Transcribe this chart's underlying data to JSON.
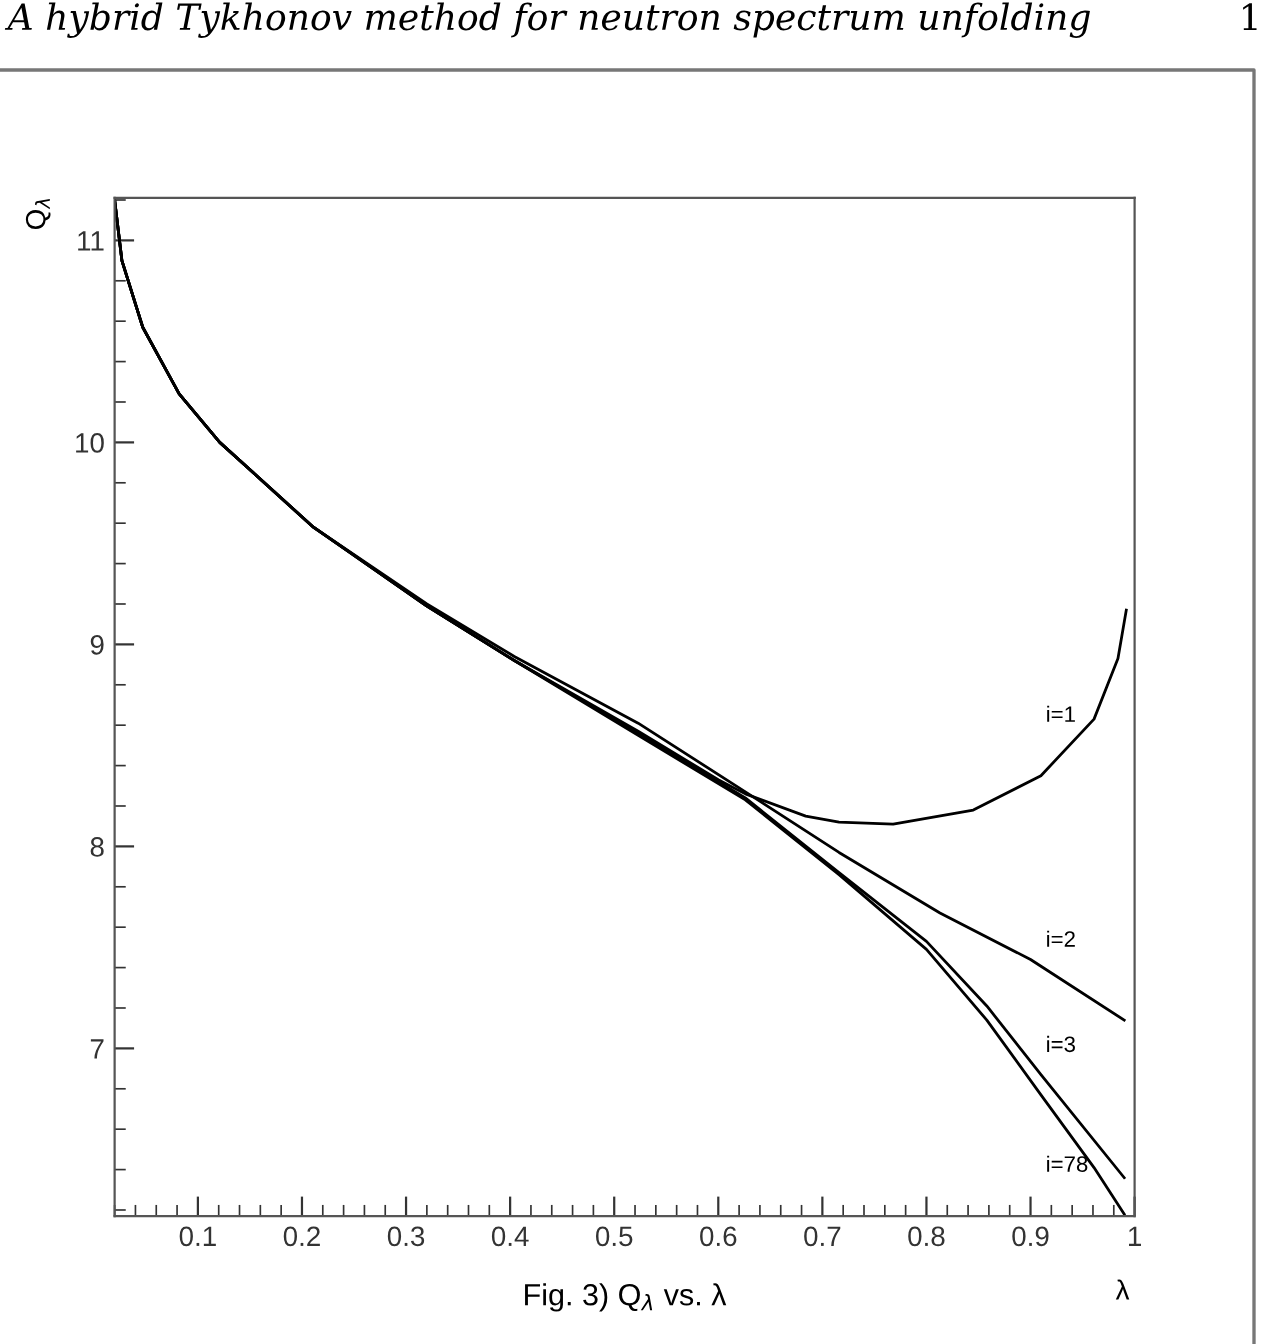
{
  "chart_data": {
    "type": "line",
    "title": "Fig. 3) Q$_{λ}$ vs. λ",
    "xlabel": "λ",
    "ylabel": "Q$_{λ}$",
    "xlim": [
      0.02,
      1
    ],
    "ylim": [
      6.17,
      11.21
    ],
    "xticks": [
      0.1,
      0.2,
      0.3,
      0.4,
      0.5,
      0.6,
      0.7,
      0.8,
      0.9,
      1
    ],
    "yticks": [
      7,
      8,
      9,
      10,
      11
    ],
    "grid": false,
    "legend": false,
    "marker": "none",
    "line_style": "solid",
    "series": [
      {
        "name": "i=1",
        "color": "#000000",
        "x": [
          0.02,
          0.027,
          0.047,
          0.082,
          0.121,
          0.211,
          0.32,
          0.404,
          0.523,
          0.6,
          0.626,
          0.684,
          0.716,
          0.768,
          0.845,
          0.91,
          0.961,
          0.984,
          0.992
        ],
        "values": [
          11.2,
          10.9,
          10.57,
          10.24,
          10.0,
          9.58,
          9.19,
          8.92,
          8.57,
          8.33,
          8.26,
          8.15,
          8.12,
          8.11,
          8.18,
          8.35,
          8.63,
          8.93,
          9.17
        ]
      },
      {
        "name": "i=2",
        "color": "#000000",
        "x": [
          0.02,
          0.027,
          0.047,
          0.082,
          0.121,
          0.211,
          0.32,
          0.404,
          0.523,
          0.626,
          0.716,
          0.813,
          0.9,
          0.99
        ],
        "values": [
          11.2,
          10.9,
          10.57,
          10.24,
          10.0,
          9.58,
          9.2,
          8.94,
          8.61,
          8.27,
          7.97,
          7.67,
          7.44,
          7.14
        ]
      },
      {
        "name": "i=3",
        "color": "#000000",
        "x": [
          0.02,
          0.027,
          0.047,
          0.082,
          0.121,
          0.211,
          0.32,
          0.404,
          0.523,
          0.626,
          0.716,
          0.8,
          0.858,
          0.91,
          0.99
        ],
        "values": [
          11.2,
          10.9,
          10.57,
          10.24,
          10.0,
          9.58,
          9.19,
          8.92,
          8.56,
          8.24,
          7.87,
          7.53,
          7.21,
          6.87,
          6.36
        ]
      },
      {
        "name": "i=78",
        "color": "#000000",
        "x": [
          0.02,
          0.027,
          0.047,
          0.082,
          0.121,
          0.211,
          0.32,
          0.404,
          0.523,
          0.626,
          0.716,
          0.8,
          0.858,
          0.91,
          0.961,
          0.99
        ],
        "values": [
          11.2,
          10.9,
          10.57,
          10.24,
          10.0,
          9.58,
          9.19,
          8.92,
          8.55,
          8.23,
          7.86,
          7.49,
          7.14,
          6.77,
          6.41,
          6.18
        ]
      }
    ],
    "annotations": [
      "A hybrid Tykhonov method for neutron spectrum unfolding",
      "1"
    ]
  }
}
